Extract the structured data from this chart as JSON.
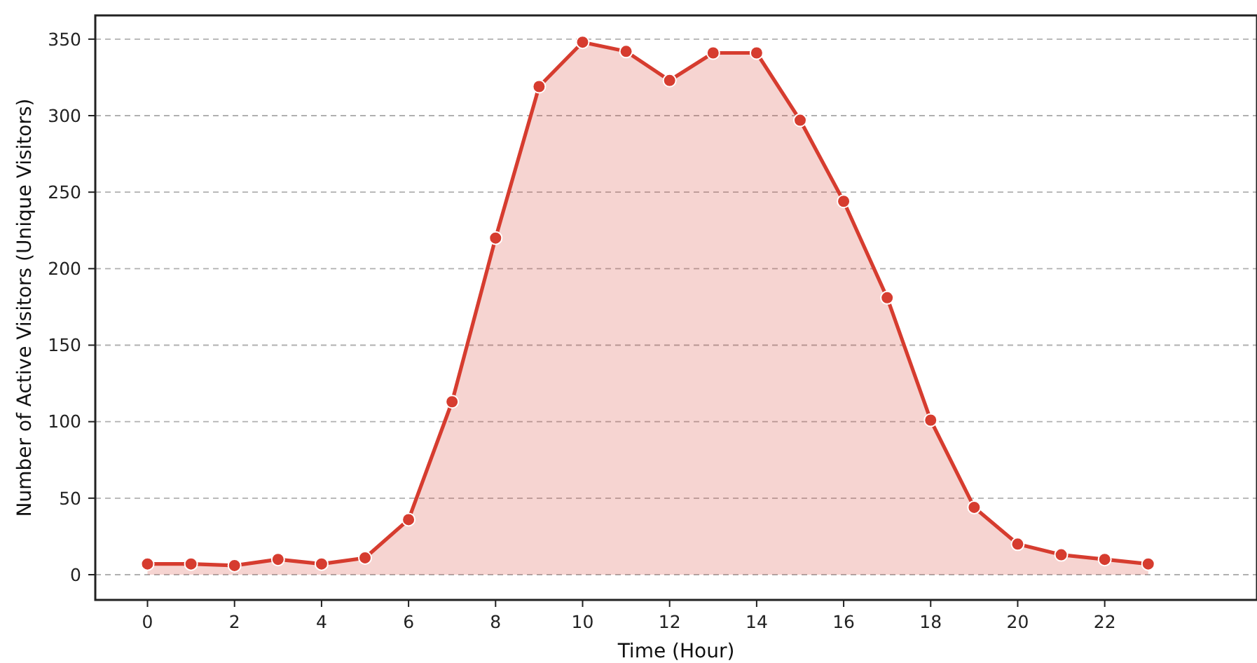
{
  "chart_data": {
    "type": "area",
    "xlabel": "Time (Hour)",
    "ylabel": "Number of Active Visitors (Unique Visitors)",
    "x": [
      0,
      1,
      2,
      3,
      4,
      5,
      6,
      7,
      8,
      9,
      10,
      11,
      12,
      13,
      14,
      15,
      16,
      17,
      18,
      19,
      20,
      21,
      22,
      23
    ],
    "series": [
      {
        "color": "#d63c2f",
        "values": [
          7,
          7,
          6,
          10,
          7,
          11,
          36,
          113,
          220,
          319,
          348,
          342,
          323,
          341,
          341,
          297,
          244,
          181,
          101,
          44,
          20,
          13,
          10,
          7
        ]
      }
    ],
    "xlim": [
      -1.2,
      25.5
    ],
    "xticks": [
      0,
      2,
      4,
      6,
      8,
      10,
      12,
      14,
      16,
      18,
      20,
      22
    ],
    "ylim": [
      -16.5,
      365.5
    ],
    "yticks": [
      0,
      50,
      100,
      150,
      200,
      250,
      300,
      350
    ],
    "grid": "y",
    "marker": "circle",
    "line_style": "solid"
  }
}
